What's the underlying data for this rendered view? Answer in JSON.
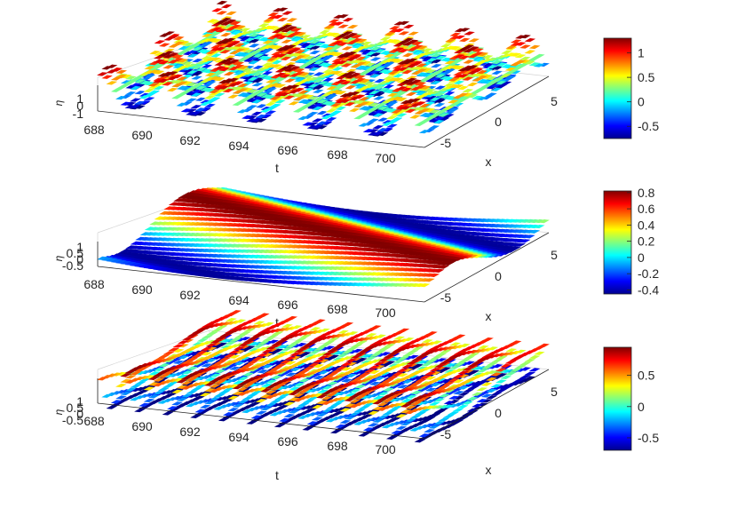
{
  "chart_data": [
    {
      "type": "surface",
      "xlabel": "t",
      "ylabel": "x",
      "zlabel": "η",
      "xlim": [
        687,
        701
      ],
      "ylim": [
        -8,
        7
      ],
      "x_ticks": [
        "688",
        "690",
        "692",
        "694",
        "696",
        "698",
        "700"
      ],
      "y_ticks": [
        "-5",
        "0",
        "5"
      ],
      "z_ticks": [
        "1",
        "0",
        "-1"
      ],
      "zlim": [
        -1,
        1
      ],
      "colormap": "jet",
      "colorbar": {
        "ticks": [
          "1",
          "0.5",
          "0",
          "-0.5"
        ],
        "tick_values": [
          1,
          0.5,
          0,
          -0.5
        ],
        "range": [
          -0.75,
          1.3
        ]
      },
      "surface": {
        "pattern": "crossed waves",
        "t_period": 2.6,
        "x_period": 7.0
      }
    },
    {
      "type": "surface",
      "xlabel": "t",
      "ylabel": "x",
      "zlabel": "η",
      "xlim": [
        687,
        701
      ],
      "ylim": [
        -8,
        7
      ],
      "x_ticks": [
        "688",
        "690",
        "692",
        "694",
        "696",
        "698",
        "700"
      ],
      "y_ticks": [
        "-5",
        "0",
        "5"
      ],
      "z_ticks": [
        "1",
        "0.5",
        "0",
        "-0.5"
      ],
      "zlim": [
        -0.5,
        1
      ],
      "colormap": "jet",
      "colorbar": {
        "ticks": [
          "0.8",
          "0.6",
          "0.4",
          "0.2",
          "0",
          "-0.2",
          "-0.4"
        ],
        "tick_values": [
          0.8,
          0.6,
          0.4,
          0.2,
          0,
          -0.2,
          -0.4
        ],
        "range": [
          -0.45,
          0.82
        ]
      },
      "surface": {
        "pattern": "single travelling wave",
        "t_period": 30,
        "x_period": 15
      }
    },
    {
      "type": "surface",
      "xlabel": "t",
      "ylabel": "x",
      "zlabel": "η",
      "xlim": [
        687,
        701
      ],
      "ylim": [
        -8,
        7
      ],
      "x_ticks": [
        "688",
        "690",
        "692",
        "694",
        "696",
        "698",
        "700"
      ],
      "y_ticks": [
        "-5",
        "0",
        "5"
      ],
      "z_ticks": [
        "1",
        "0.5",
        "0",
        "-0.5"
      ],
      "zlim": [
        -0.5,
        1
      ],
      "colormap": "jet",
      "colorbar": {
        "ticks": [
          "0.5",
          "0",
          "-0.5"
        ],
        "tick_values": [
          0.5,
          0,
          -0.5
        ],
        "range": [
          -0.7,
          0.95
        ]
      },
      "surface": {
        "pattern": "oblique travelling wave",
        "t_period": 1.2,
        "x_period": 40
      }
    }
  ]
}
